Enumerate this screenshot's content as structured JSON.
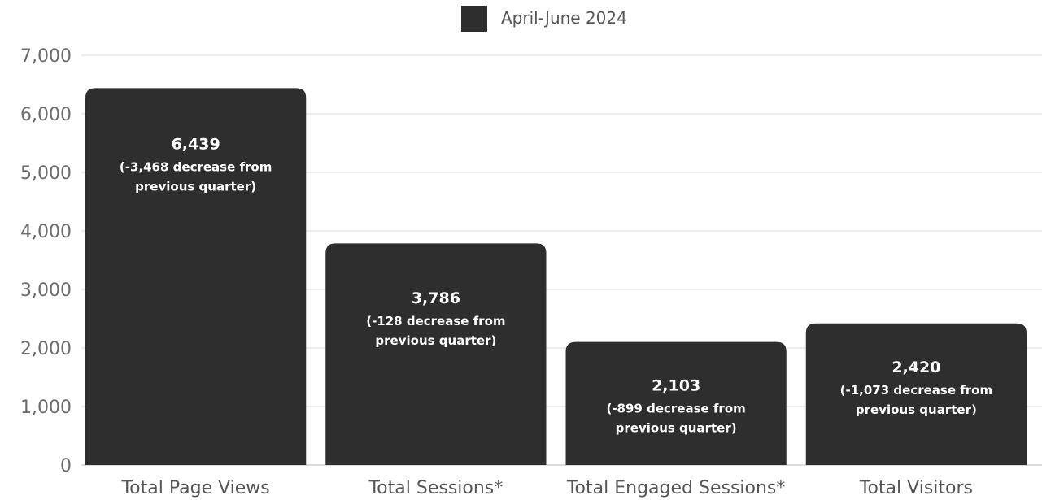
{
  "chart_data": {
    "type": "bar",
    "legend": {
      "label": "April-June 2024",
      "position": "top-center"
    },
    "categories": [
      "Total Page Views",
      "Total Sessions*",
      "Total Engaged Sessions*",
      "Total Visitors"
    ],
    "series": [
      {
        "name": "April-June 2024",
        "color": "#2e2e2e",
        "values": [
          6439,
          3786,
          2103,
          2420
        ]
      }
    ],
    "data_labels": [
      {
        "value": "6,439",
        "lines": [
          "(-3,468 decrease from",
          "previous quarter)"
        ]
      },
      {
        "value": "3,786",
        "lines": [
          "(-128 decrease from",
          "previous quarter)"
        ]
      },
      {
        "value": "2,103",
        "lines": [
          "(-899 decrease from",
          "previous quarter)"
        ]
      },
      {
        "value": "2,420",
        "lines": [
          "(-1,073  decrease from",
          "previous quarter)"
        ]
      }
    ],
    "y_ticks": [
      "0",
      "1,000",
      "2,000",
      "3,000",
      "4,000",
      "5,000",
      "6,000",
      "7,000"
    ],
    "ylim": [
      0,
      7000
    ],
    "grid": true,
    "colors": {
      "bar": "#2e2e2e",
      "grid": "#e6e6e6",
      "tick_text": "#6b6b6b",
      "category_text": "#555555"
    }
  }
}
